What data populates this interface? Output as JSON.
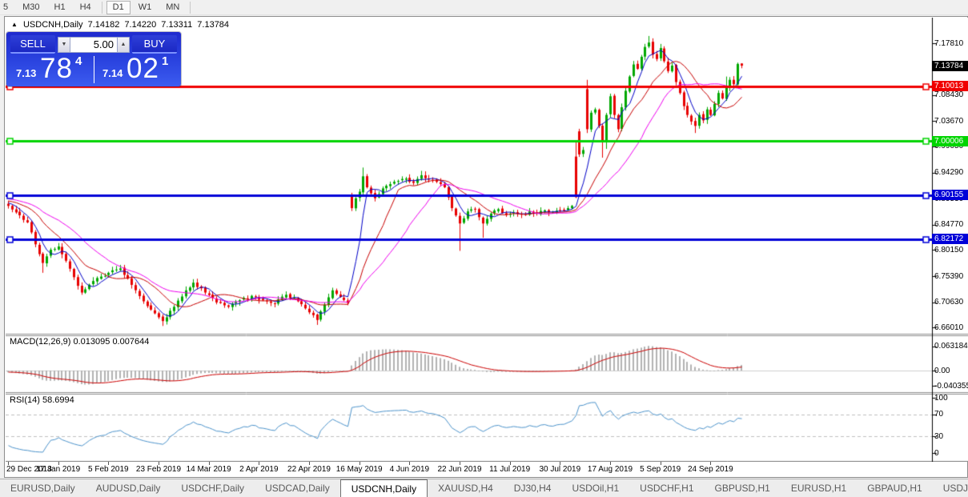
{
  "toolbar": {
    "timeframes": [
      {
        "label": "5",
        "active": false
      },
      {
        "label": "M30",
        "active": false
      },
      {
        "label": "H1",
        "active": false
      },
      {
        "label": "H4",
        "active": false
      },
      {
        "label": "|sep|",
        "active": false
      },
      {
        "label": "D1",
        "active": true
      },
      {
        "label": "W1",
        "active": false
      },
      {
        "label": "MN",
        "active": false
      },
      {
        "label": "|sep|",
        "active": false
      }
    ]
  },
  "chart": {
    "title_marker": "▲",
    "symbol": "USDCNH,Daily",
    "ohlc": {
      "open": "7.14182",
      "high": "7.14220",
      "low": "7.13311",
      "close": "7.13784"
    }
  },
  "trade_panel": {
    "sell_label": "SELL",
    "buy_label": "BUY",
    "volume": "5.00",
    "volume_down_icon": "▼",
    "volume_up_icon": "▲",
    "sell_price_prefix": "7.13",
    "sell_price_big": "78",
    "sell_price_sup": "4",
    "buy_price_prefix": "7.14",
    "buy_price_big": "02",
    "buy_price_sup": "1"
  },
  "price_axis": {
    "labels": [
      "7.17810",
      "7.13190",
      "7.08430",
      "7.03670",
      "6.99050",
      "6.94290",
      "6.89530",
      "6.84770",
      "6.80150",
      "6.75390",
      "6.70630",
      "6.66010"
    ],
    "current": {
      "label": "7.13784",
      "price": 7.13784,
      "bg": "#000000",
      "text_color": "#ffffff"
    }
  },
  "levels": [
    {
      "label": "7.10013",
      "price": 7.10013,
      "color": "#f00000",
      "text_color": "#ffffff",
      "width": 3
    },
    {
      "label": "7.00006",
      "price": 7.00006,
      "color": "#00d400",
      "text_color": "#ffffff",
      "width": 3
    },
    {
      "label": "6.90155",
      "price": 6.90155,
      "color": "#0000d8",
      "text_color": "#ffffff",
      "width": 3
    },
    {
      "label": "6.82172",
      "price": 6.82172,
      "color": "#0000d8",
      "text_color": "#ffffff",
      "width": 3
    }
  ],
  "indicators": {
    "macd": {
      "name": "MACD(12,26,9)",
      "value_main": "0.013095",
      "value_signal": "0.007644",
      "params": {
        "fast": 12,
        "slow": 26,
        "signal": 9
      },
      "axis": [
        {
          "text": "0.063184",
          "v": 0.063184
        },
        {
          "text": "0.00",
          "v": 0.0
        },
        {
          "text": "-0.040355",
          "v": -0.040355
        }
      ],
      "hist_color": "#b2b2b2",
      "signal_color": "#cc0000"
    },
    "rsi": {
      "name": "RSI(14)",
      "value": "58.6994",
      "period": 14,
      "axis": [
        {
          "text": "100",
          "v": 100
        },
        {
          "text": "70",
          "v": 70
        },
        {
          "text": "30",
          "v": 30
        },
        {
          "text": "0",
          "v": 0
        }
      ],
      "levels": [
        70,
        30
      ],
      "line_color": "#4d94cc",
      "level_color": "#c0c0c0"
    }
  },
  "time_axis": {
    "dates": [
      "29 Dec 2018",
      "17 Jan 2019",
      "5 Feb 2019",
      "23 Feb 2019",
      "14 Mar 2019",
      "2 Apr 2019",
      "22 Apr 2019",
      "16 May 2019",
      "4 Jun 2019",
      "22 Jun 2019",
      "11 Jul 2019",
      "30 Jul 2019",
      "17 Aug 2019",
      "5 Sep 2019",
      "24 Sep 2019"
    ],
    "candles_per_tick": 13
  },
  "tabs": {
    "items": [
      {
        "label": "EURUSD,Daily",
        "active": false
      },
      {
        "label": "AUDUSD,Daily",
        "active": false
      },
      {
        "label": "USDCHF,Daily",
        "active": false
      },
      {
        "label": "USDCAD,Daily",
        "active": false
      },
      {
        "label": "USDCNH,Daily",
        "active": true
      },
      {
        "label": "XAUUSD,H4",
        "active": false
      },
      {
        "label": "DJ30,H4",
        "active": false
      },
      {
        "label": "USDOil,H1",
        "active": false
      },
      {
        "label": "USDCHF,H1",
        "active": false
      },
      {
        "label": "GBPUSD,H1",
        "active": false
      },
      {
        "label": "EURUSD,H1",
        "active": false
      },
      {
        "label": "GBPAUD,H1",
        "active": false
      },
      {
        "label": "USDJP",
        "active": false
      }
    ],
    "scroll_left_icon": "◂",
    "scroll_right_icon": "▸"
  },
  "chart_data": {
    "type": "candlestick",
    "symbol": "USDCNH",
    "timeframe": "Daily",
    "last_ohlc": [
      7.14182,
      7.1422,
      7.13311,
      7.13784
    ],
    "y_axis": {
      "top": 7.2255,
      "bottom": 6.6488
    },
    "horizontal_lines": [
      7.10013,
      7.00006,
      6.90155,
      6.82172
    ],
    "current_price": 7.13784,
    "candle_count": 191,
    "bull_color": "#00a800",
    "bear_color": "#e80000",
    "ma": {
      "fast": {
        "period": 5,
        "color": "#0000c8"
      },
      "mid": {
        "period": 13,
        "color": "#c80000"
      },
      "slow": {
        "period": 24,
        "color": "#f000f0"
      }
    },
    "price_path_anchors": [
      [
        0,
        6.882
      ],
      [
        3,
        6.865
      ],
      [
        5,
        6.852
      ],
      [
        7,
        6.812
      ],
      [
        9,
        6.778
      ],
      [
        11,
        6.802
      ],
      [
        13,
        6.808
      ],
      [
        15,
        6.782
      ],
      [
        17,
        6.752
      ],
      [
        19,
        6.724
      ],
      [
        22,
        6.745
      ],
      [
        26,
        6.76
      ],
      [
        29,
        6.768
      ],
      [
        32,
        6.738
      ],
      [
        35,
        6.708
      ],
      [
        38,
        6.686
      ],
      [
        40,
        6.672
      ],
      [
        43,
        6.698
      ],
      [
        46,
        6.728
      ],
      [
        48,
        6.742
      ],
      [
        51,
        6.724
      ],
      [
        54,
        6.706
      ],
      [
        57,
        6.698
      ],
      [
        60,
        6.71
      ],
      [
        63,
        6.718
      ],
      [
        66,
        6.71
      ],
      [
        69,
        6.704
      ],
      [
        72,
        6.72
      ],
      [
        75,
        6.708
      ],
      [
        78,
        6.688
      ],
      [
        80,
        6.674
      ],
      [
        82,
        6.702
      ],
      [
        84,
        6.728
      ],
      [
        86,
        6.716
      ],
      [
        88,
        6.705
      ],
      [
        89,
        6.878
      ],
      [
        90,
        6.896
      ],
      [
        91,
        6.908
      ],
      [
        92,
        6.936
      ],
      [
        93,
        6.916
      ],
      [
        95,
        6.896
      ],
      [
        97,
        6.914
      ],
      [
        100,
        6.926
      ],
      [
        103,
        6.932
      ],
      [
        105,
        6.924
      ],
      [
        107,
        6.938
      ],
      [
        109,
        6.93
      ],
      [
        111,
        6.926
      ],
      [
        113,
        6.916
      ],
      [
        115,
        6.878
      ],
      [
        117,
        6.85
      ],
      [
        119,
        6.872
      ],
      [
        121,
        6.876
      ],
      [
        123,
        6.85
      ],
      [
        125,
        6.868
      ],
      [
        127,
        6.876
      ],
      [
        129,
        6.866
      ],
      [
        131,
        6.87
      ],
      [
        133,
        6.866
      ],
      [
        135,
        6.872
      ],
      [
        137,
        6.868
      ],
      [
        139,
        6.874
      ],
      [
        141,
        6.87
      ],
      [
        143,
        6.874
      ],
      [
        145,
        6.878
      ],
      [
        146,
        6.882
      ],
      [
        147,
        6.898
      ],
      [
        148,
        6.976
      ],
      [
        149,
        6.984
      ],
      [
        150,
        7.022
      ],
      [
        151,
        7.052
      ],
      [
        152,
        7.058
      ],
      [
        153,
        7.028
      ],
      [
        154,
        6.998
      ],
      [
        155,
        7.048
      ],
      [
        156,
        7.082
      ],
      [
        157,
        7.048
      ],
      [
        158,
        7.022
      ],
      [
        159,
        7.062
      ],
      [
        160,
        7.092
      ],
      [
        161,
        7.118
      ],
      [
        162,
        7.14
      ],
      [
        163,
        7.132
      ],
      [
        164,
        7.154
      ],
      [
        165,
        7.172
      ],
      [
        166,
        7.18
      ],
      [
        167,
        7.158
      ],
      [
        168,
        7.15
      ],
      [
        169,
        7.17
      ],
      [
        170,
        7.146
      ],
      [
        171,
        7.128
      ],
      [
        172,
        7.138
      ],
      [
        173,
        7.108
      ],
      [
        174,
        7.088
      ],
      [
        175,
        7.064
      ],
      [
        176,
        7.048
      ],
      [
        177,
        7.036
      ],
      [
        178,
        7.028
      ],
      [
        179,
        7.048
      ],
      [
        180,
        7.038
      ],
      [
        181,
        7.058
      ],
      [
        182,
        7.048
      ],
      [
        183,
        7.068
      ],
      [
        184,
        7.088
      ],
      [
        185,
        7.078
      ],
      [
        186,
        7.098
      ],
      [
        187,
        7.112
      ],
      [
        188,
        7.104
      ],
      [
        189,
        7.141
      ],
      [
        190,
        7.13784
      ]
    ],
    "forced_opens": {
      "89": 6.902,
      "147": 6.972,
      "148": 7.018,
      "150": 7.095,
      "155": 7.002
    },
    "forced_wicks": {
      "9": [
        null,
        6.76
      ],
      "40": [
        null,
        6.663
      ],
      "80": [
        null,
        6.665
      ],
      "92": [
        6.952,
        null
      ],
      "107": [
        6.946,
        null
      ],
      "117": [
        null,
        6.8
      ],
      "123": [
        null,
        6.824
      ],
      "147": [
        6.998,
        null
      ],
      "150": [
        7.112,
        null
      ],
      "154": [
        null,
        6.97
      ],
      "155": [
        null,
        6.986
      ],
      "166": [
        7.192,
        null
      ],
      "178": [
        null,
        7.015
      ],
      "186": [
        7.118,
        null
      ]
    }
  }
}
